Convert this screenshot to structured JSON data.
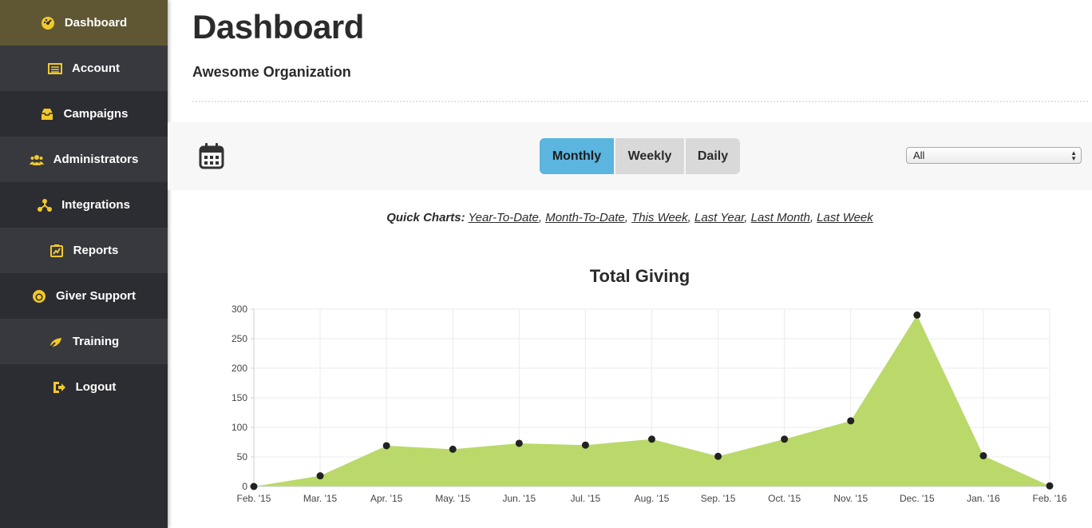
{
  "sidebar": {
    "items": [
      {
        "label": "Dashboard",
        "icon": "dashboard-gauge-icon",
        "active": true
      },
      {
        "label": "Account",
        "icon": "list-icon"
      },
      {
        "label": "Campaigns",
        "icon": "inbox-icon"
      },
      {
        "label": "Administrators",
        "icon": "users-icon"
      },
      {
        "label": "Integrations",
        "icon": "network-icon"
      },
      {
        "label": "Reports",
        "icon": "chart-icon"
      },
      {
        "label": "Giver Support",
        "icon": "support-icon"
      },
      {
        "label": "Training",
        "icon": "training-icon"
      },
      {
        "label": "Logout",
        "icon": "logout-icon"
      }
    ],
    "icon_color": "#f3c928"
  },
  "header": {
    "title": "Dashboard",
    "organization": "Awesome Organization"
  },
  "toolbar": {
    "calendar_icon": "calendar-icon",
    "periods": [
      "Monthly",
      "Weekly",
      "Daily"
    ],
    "active_period": "Monthly",
    "filter_selected": "All"
  },
  "quick_charts": {
    "label": "Quick Charts:",
    "links": [
      "Year-To-Date",
      "Month-To-Date",
      "This Week",
      "Last Year",
      "Last Month",
      "Last Week"
    ]
  },
  "chart_data": {
    "type": "area",
    "title": "Total Giving",
    "categories": [
      "Feb. '15",
      "Mar. '15",
      "Apr. '15",
      "May. '15",
      "Jun. '15",
      "Jul. '15",
      "Aug. '15",
      "Sep. '15",
      "Oct. '15",
      "Nov. '15",
      "Dec. '15",
      "Jan. '16",
      "Feb. '16"
    ],
    "values": [
      0,
      18,
      69,
      63,
      73,
      70,
      80,
      51,
      80,
      111,
      290,
      52,
      1
    ],
    "ylim": [
      0,
      300
    ],
    "yticks": [
      0,
      50,
      100,
      150,
      200,
      250,
      300
    ],
    "grid": true,
    "fill_color": "#bad96a",
    "marker_color": "#222222"
  }
}
